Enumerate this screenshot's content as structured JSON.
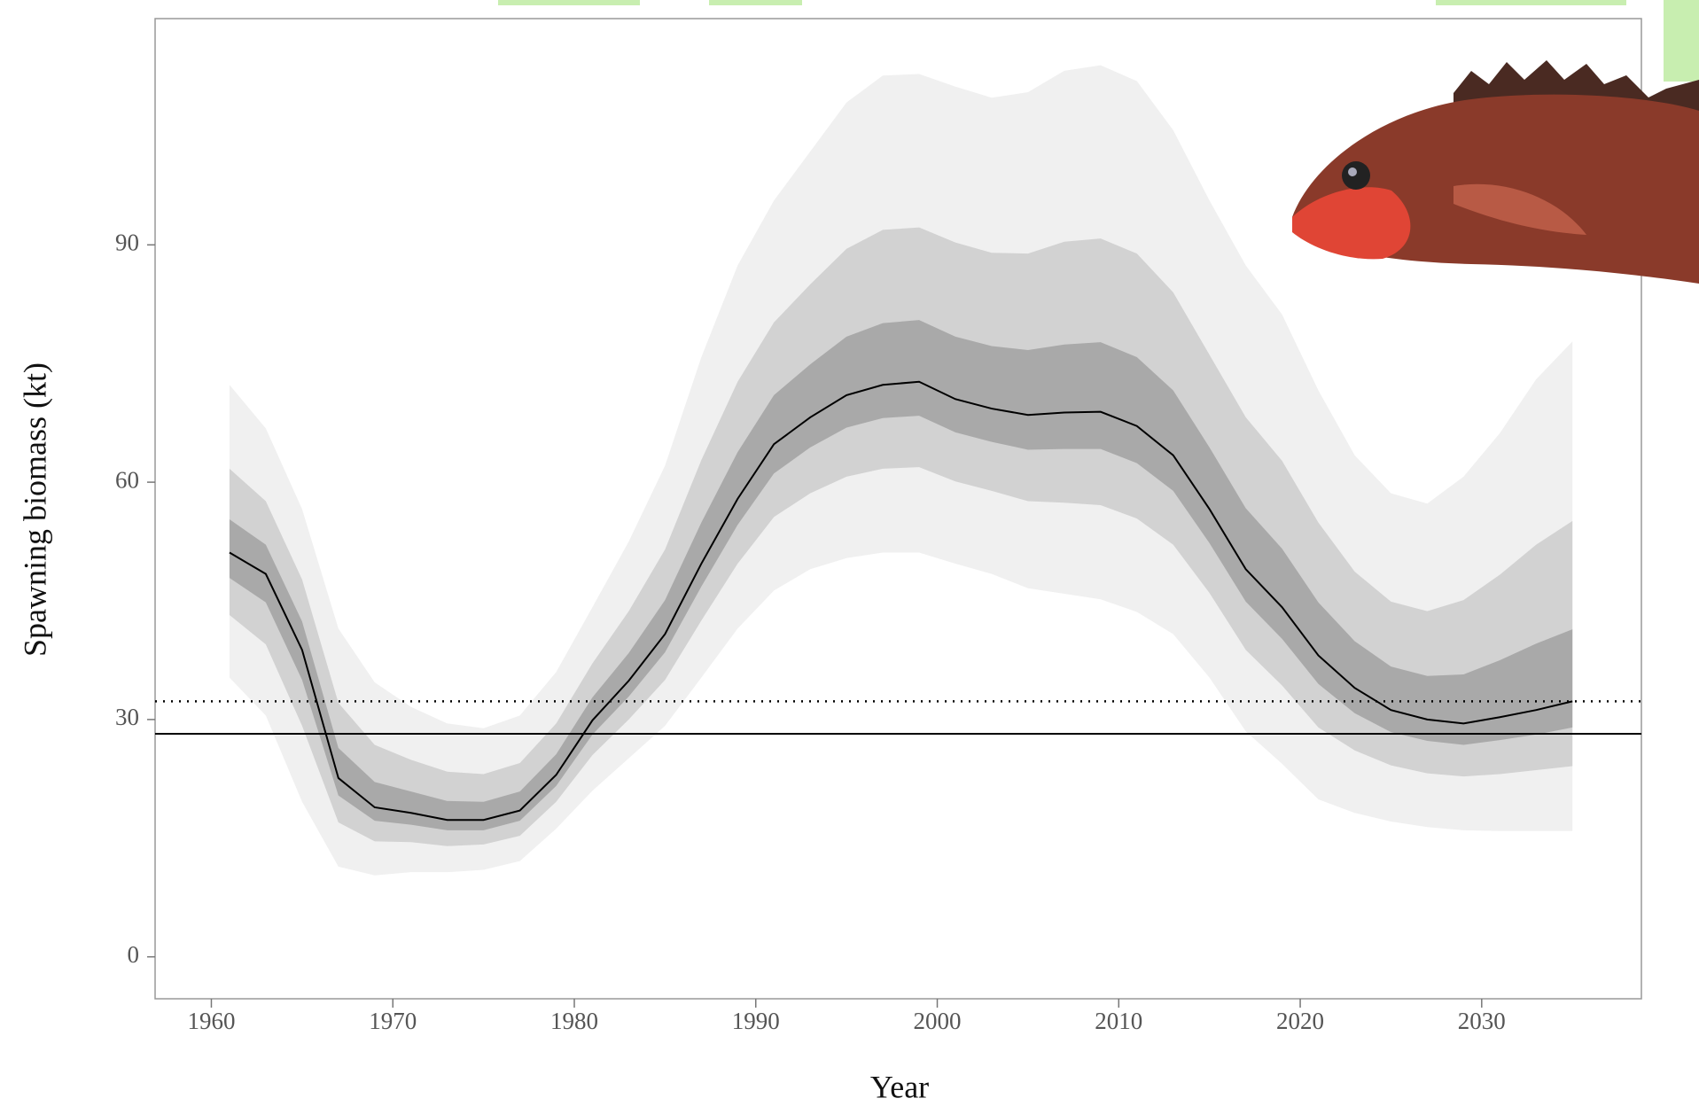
{
  "chart_data": {
    "type": "fan",
    "x_label": "Year",
    "y_label": "Spawning biomass (kt)",
    "x": [
      1961,
      1963,
      1965,
      1967,
      1969,
      1971,
      1973,
      1975,
      1977,
      1979,
      1981,
      1983,
      1985,
      1987,
      1989,
      1991,
      1993,
      1995,
      1997,
      1999,
      2001,
      2003,
      2005,
      2007,
      2009,
      2011,
      2013,
      2015,
      2017,
      2019,
      2021,
      2023,
      2025,
      2027,
      2029,
      2031,
      2033,
      2035
    ],
    "bands": [
      {
        "color": "#f0f0f0",
        "upper": [
          72.3,
          66.8,
          56.6,
          41.5,
          34.7,
          31.6,
          29.5,
          28.9,
          30.5,
          36.0,
          44.2,
          52.5,
          62.1,
          75.8,
          87.4,
          95.6,
          101.8,
          108,
          111.4,
          111.6,
          110,
          108.6,
          109.3,
          112,
          112.7,
          110.7,
          104.5,
          95.6,
          87.4,
          81.2,
          71.6,
          63.4,
          58.6,
          57.3,
          60.7,
          66.2,
          73.0,
          77.8
        ],
        "lower": [
          35.3,
          30.5,
          19.6,
          11.4,
          10.3,
          10.7,
          10.7,
          11.0,
          12.1,
          16.2,
          21.0,
          25.1,
          29.2,
          35.3,
          41.5,
          46.3,
          49.0,
          50.4,
          51.1,
          51.1,
          49.7,
          48.4,
          46.6,
          45.9,
          45.2,
          43.6,
          40.8,
          35.3,
          28.5,
          24.4,
          19.9,
          18.2,
          17.1,
          16.4,
          16.0,
          15.9,
          15.9,
          15.9
        ]
      },
      {
        "color": "#d2d2d2",
        "upper": [
          61.7,
          57.6,
          47.7,
          32.1,
          26.8,
          24.9,
          23.4,
          23.1,
          24.5,
          29.5,
          37.1,
          43.7,
          51.5,
          62.8,
          72.7,
          80.2,
          85.0,
          89.5,
          91.9,
          92.2,
          90.3,
          89.0,
          88.9,
          90.4,
          90.8,
          88.9,
          84.0,
          76.1,
          68.2,
          62.7,
          54.9,
          48.7,
          44.9,
          43.7,
          45.1,
          48.3,
          52.1,
          55.1
        ],
        "lower": [
          43.2,
          39.5,
          29.2,
          17.0,
          14.6,
          14.5,
          14.0,
          14.2,
          15.3,
          19.6,
          25.5,
          30.0,
          35.0,
          42.5,
          49.7,
          55.6,
          58.6,
          60.7,
          61.7,
          61.9,
          60.1,
          58.9,
          57.6,
          57.4,
          57.1,
          55.4,
          52.1,
          46.0,
          38.8,
          34.3,
          29.0,
          26.1,
          24.2,
          23.2,
          22.8,
          23.1,
          23.6,
          24.1
        ]
      },
      {
        "color": "#a9a9a9",
        "upper": [
          55.3,
          52.1,
          42.4,
          26.4,
          22.1,
          20.9,
          19.7,
          19.6,
          20.9,
          25.6,
          32.8,
          38.4,
          45.1,
          54.9,
          63.8,
          71.0,
          74.9,
          78.4,
          80.1,
          80.5,
          78.4,
          77.2,
          76.7,
          77.4,
          77.7,
          75.8,
          71.6,
          64.4,
          56.7,
          51.6,
          44.8,
          39.9,
          36.7,
          35.5,
          35.7,
          37.5,
          39.6,
          41.4
        ],
        "lower": [
          47.9,
          44.8,
          35.0,
          20.4,
          17.2,
          16.7,
          16.0,
          16.0,
          17.2,
          21.6,
          28.1,
          32.9,
          38.5,
          46.8,
          54.6,
          61.1,
          64.4,
          66.9,
          68.1,
          68.4,
          66.3,
          65.1,
          64.1,
          64.2,
          64.2,
          62.4,
          58.9,
          52.3,
          44.9,
          40.2,
          34.5,
          30.8,
          28.4,
          27.3,
          26.8,
          27.4,
          28.1,
          29.0
        ]
      }
    ],
    "median": {
      "color": "#000000",
      "values": [
        51.1,
        48.4,
        38.8,
        22.6,
        18.9,
        18.2,
        17.3,
        17.3,
        18.5,
        23.0,
        29.9,
        34.9,
        40.8,
        49.7,
        57.9,
        64.8,
        68.2,
        71.0,
        72.3,
        72.7,
        70.5,
        69.3,
        68.5,
        68.8,
        68.9,
        67.1,
        63.4,
        56.6,
        49.0,
        44.2,
        38.1,
        34.0,
        31.2,
        30.0,
        29.5,
        30.3,
        31.2,
        32.3
      ]
    },
    "reference_lines": [
      {
        "value": 28.2,
        "style": "solid"
      },
      {
        "value": 32.3,
        "style": "dotted"
      }
    ],
    "xlim": [
      1956.9,
      2038.8
    ],
    "xticks": [
      1960,
      1970,
      1980,
      1990,
      2000,
      2010,
      2020,
      2030
    ],
    "ylim": [
      -5.3,
      118.6
    ],
    "yticks": [
      0,
      30,
      60,
      90
    ]
  }
}
